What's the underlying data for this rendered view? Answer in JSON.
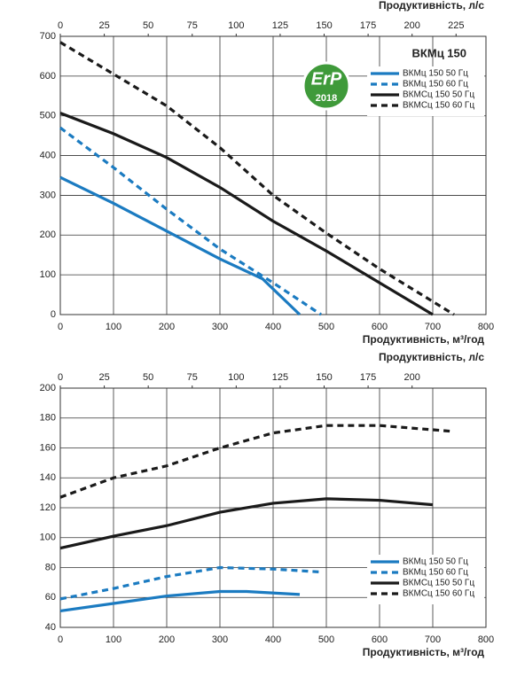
{
  "chart_data": [
    {
      "type": "line",
      "title": "ВКМц 150",
      "badge_text": "ErP",
      "badge_year": "2018",
      "xlabel": "Продуктивність, м³/год",
      "x2label": "Продуктивність, л/с",
      "xlim": [
        0,
        800
      ],
      "xticks": [
        0,
        100,
        200,
        300,
        400,
        500,
        600,
        700,
        800
      ],
      "x2lim": [
        0,
        242
      ],
      "x2ticks": [
        0,
        25,
        50,
        75,
        100,
        125,
        150,
        175,
        200,
        225
      ],
      "ylim": [
        0,
        700
      ],
      "yticks": [
        0,
        100,
        200,
        300,
        400,
        500,
        600,
        700
      ],
      "grid": true,
      "legend": "upper right",
      "series": [
        {
          "name": "ВКМц 150 50 Гц",
          "color": "#1b7bc1",
          "linestyle": "solid",
          "x": [
            0,
            100,
            200,
            300,
            380,
            450
          ],
          "values": [
            345,
            280,
            210,
            140,
            90,
            0
          ]
        },
        {
          "name": "ВКМц 150 60 Гц",
          "color": "#1b7bc1",
          "linestyle": "dashed",
          "x": [
            0,
            100,
            200,
            300,
            400,
            490
          ],
          "values": [
            470,
            370,
            265,
            165,
            80,
            0
          ]
        },
        {
          "name": "ВКМСц 150 50 Гц",
          "color": "#1a1a1a",
          "linestyle": "solid",
          "x": [
            0,
            100,
            200,
            300,
            400,
            500,
            600,
            700
          ],
          "values": [
            507,
            455,
            395,
            320,
            235,
            160,
            80,
            0
          ]
        },
        {
          "name": "ВКМСц 150 60 Гц",
          "color": "#1a1a1a",
          "linestyle": "dashed",
          "x": [
            0,
            100,
            200,
            300,
            400,
            500,
            600,
            740
          ],
          "values": [
            685,
            605,
            525,
            420,
            300,
            205,
            115,
            0
          ]
        }
      ]
    },
    {
      "type": "line",
      "xlabel": "Продуктивність, м³/год",
      "x2label": "Продуктивність, л/с",
      "xlim": [
        0,
        800
      ],
      "xticks": [
        0,
        100,
        200,
        300,
        400,
        500,
        600,
        700,
        800
      ],
      "x2lim": [
        0,
        242
      ],
      "x2ticks": [
        0,
        25,
        50,
        75,
        100,
        125,
        150,
        175,
        200
      ],
      "ylim": [
        40,
        200
      ],
      "yticks": [
        40,
        60,
        80,
        100,
        120,
        140,
        160,
        180,
        200
      ],
      "grid": true,
      "legend": "lower right",
      "series": [
        {
          "name": "ВКМц 150 50 Гц",
          "color": "#1b7bc1",
          "linestyle": "solid",
          "x": [
            0,
            100,
            200,
            300,
            350,
            450
          ],
          "values": [
            51,
            56,
            61,
            64,
            64,
            62
          ]
        },
        {
          "name": "ВКМц 150 60 Гц",
          "color": "#1b7bc1",
          "linestyle": "dashed",
          "x": [
            0,
            100,
            200,
            300,
            400,
            490
          ],
          "values": [
            59,
            66,
            74,
            80,
            79,
            77
          ]
        },
        {
          "name": "ВКМСц 150 50 Гц",
          "color": "#1a1a1a",
          "linestyle": "solid",
          "x": [
            0,
            100,
            200,
            300,
            400,
            500,
            600,
            700
          ],
          "values": [
            93,
            101,
            108,
            117,
            123,
            126,
            125,
            122
          ]
        },
        {
          "name": "ВКМСц 150 60 Гц",
          "color": "#1a1a1a",
          "linestyle": "dashed",
          "x": [
            0,
            100,
            200,
            300,
            400,
            500,
            600,
            740
          ],
          "values": [
            127,
            140,
            148,
            160,
            170,
            175,
            175,
            171
          ]
        }
      ]
    }
  ]
}
